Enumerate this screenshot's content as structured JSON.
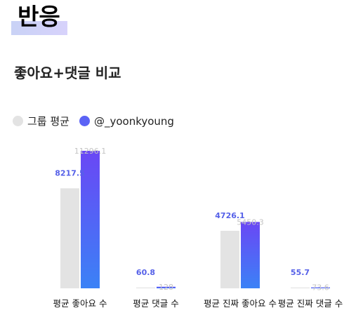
{
  "page": {
    "section_title": "반응",
    "chart_title": "좋아요+댓글 비교"
  },
  "legend": [
    {
      "label": "그룹 평균",
      "color": "#e3e3e3"
    },
    {
      "label": "@_yoonkyoung",
      "color": "#5b63f5"
    }
  ],
  "colors": {
    "group": "#e3e3e3",
    "user_top": "#6a47f5",
    "user_bottom": "#3b82f6",
    "user_label": "#5560e8",
    "group_label": "#c4c4c4"
  },
  "chart_data": {
    "type": "bar",
    "title": "좋아요+댓글 비교",
    "categories": [
      "평균 좋아요 수",
      "평균 댓글 수",
      "평균 진짜 좋아요 수",
      "평균 진짜 댓글 수"
    ],
    "series": [
      {
        "name": "그룹 평균",
        "values": [
          8217.5,
          60.8,
          4726.1,
          55.7
        ],
        "labels": [
          "8217.5",
          "60.8",
          "4726.1",
          "55.7"
        ]
      },
      {
        "name": "@_yoonkyoung",
        "values": [
          11296.1,
          128,
          5450.3,
          73.6
        ],
        "labels": [
          "11296.1",
          "128",
          "5450.3",
          "73.6"
        ]
      }
    ],
    "ylim": [
      0,
      11296.1
    ],
    "legend_position": "top-left",
    "grid": false
  }
}
